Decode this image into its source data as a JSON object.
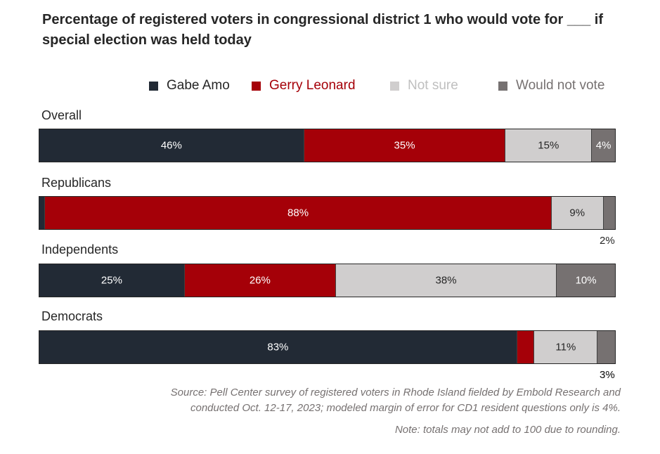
{
  "chart_data": {
    "type": "bar",
    "orientation": "horizontal",
    "stacked": true,
    "title": "Percentage of registered voters in congressional district 1 who would vote for ___ if special election was held today",
    "categories": [
      "Overall",
      "Republicans",
      "Independents",
      "Democrats"
    ],
    "series": [
      {
        "name": "Gabe Amo",
        "color": "#222a35",
        "values": [
          46,
          1,
          25,
          83
        ],
        "labels": [
          "46%",
          "1%",
          "25%",
          "83%"
        ],
        "label_color": "#ffffff"
      },
      {
        "name": "Gerry Leonard",
        "color": "#a50008",
        "values": [
          35,
          88,
          26,
          3
        ],
        "labels": [
          "35%",
          "88%",
          "26%",
          "3%"
        ],
        "label_color": "#ffffff"
      },
      {
        "name": "Not sure",
        "color": "#d0cece",
        "values": [
          15,
          9,
          38,
          11
        ],
        "labels": [
          "15%",
          "9%",
          "38%",
          "11%"
        ],
        "label_color": "#262626"
      },
      {
        "name": "Would not vote",
        "color": "#767171",
        "values": [
          4,
          2,
          10,
          3
        ],
        "labels": [
          "4%",
          "2%",
          "10%",
          "3%"
        ],
        "label_color": "#ffffff"
      }
    ],
    "legend_position": "top",
    "legend_colors": [
      "#262626",
      "#a50008",
      "#bfbfbf",
      "#767171"
    ],
    "source": "Source: Pell Center survey of registered voters in Rhode Island fielded by Embold Research and conducted Oct. 12-17, 2023; modeled margin of error for CD1 resident questions only is 4%.",
    "note": "Note: totals may not add to 100 due to rounding."
  }
}
